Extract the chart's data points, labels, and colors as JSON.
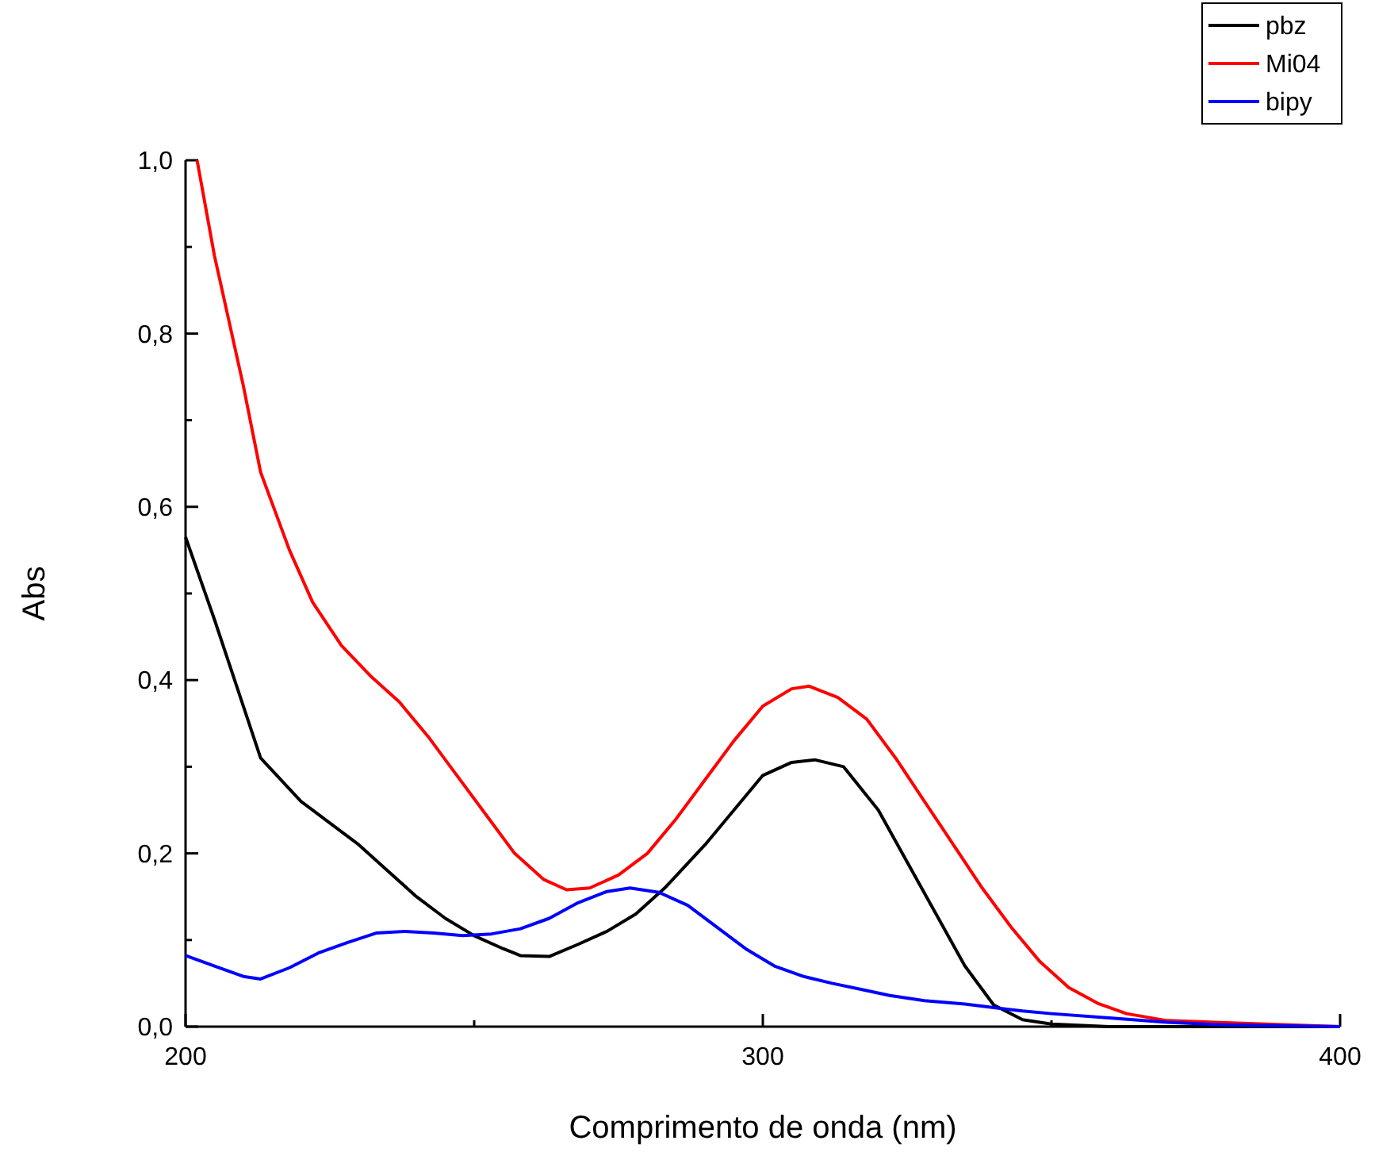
{
  "chart_data": {
    "type": "line",
    "xlabel": "Comprimento de onda (nm)",
    "ylabel": "Abs",
    "xlim": [
      200,
      400
    ],
    "ylim": [
      0,
      1
    ],
    "xticks": [
      200,
      {
        "value": 250,
        "label": null
      },
      300,
      {
        "value": 350,
        "label": null
      },
      400
    ],
    "yticks": [
      {
        "value": 0,
        "label": "0,0"
      },
      {
        "value": 0.1,
        "label": null
      },
      {
        "value": 0.2,
        "label": "0,2"
      },
      {
        "value": 0.3,
        "label": null
      },
      {
        "value": 0.4,
        "label": "0,4"
      },
      {
        "value": 0.5,
        "label": null
      },
      {
        "value": 0.6,
        "label": "0,6"
      },
      {
        "value": 0.7,
        "label": null
      },
      {
        "value": 0.8,
        "label": "0,8"
      },
      {
        "value": 0.9,
        "label": null
      },
      {
        "value": 1,
        "label": "1,0"
      }
    ],
    "grid": false,
    "legend": "top right",
    "marker": "none",
    "line_style": "solid",
    "series": [
      {
        "name": "pbz",
        "color": "#000000",
        "x": [
          200,
          205,
          210,
          213,
          220,
          225,
          230,
          235,
          240,
          245,
          250,
          255,
          258,
          263,
          268,
          273,
          278,
          283,
          290,
          295,
          300,
          305,
          309,
          314,
          320,
          325,
          330,
          335,
          340,
          345,
          350,
          360,
          400
        ],
        "values": [
          0.565,
          0.47,
          0.37,
          0.31,
          0.26,
          0.235,
          0.21,
          0.18,
          0.15,
          0.125,
          0.105,
          0.09,
          0.082,
          0.081,
          0.095,
          0.11,
          0.13,
          0.16,
          0.21,
          0.25,
          0.29,
          0.305,
          0.308,
          0.3,
          0.25,
          0.19,
          0.13,
          0.07,
          0.025,
          0.008,
          0.003,
          0,
          0
        ]
      },
      {
        "name": "Mi04",
        "color": "#ff0000",
        "x": [
          202,
          205,
          210,
          213,
          218,
          222,
          227,
          232,
          237,
          242,
          247,
          252,
          257,
          262,
          266,
          270,
          275,
          280,
          285,
          290,
          295,
          300,
          305,
          308,
          313,
          318,
          323,
          328,
          333,
          338,
          343,
          348,
          353,
          358,
          363,
          370,
          400
        ],
        "values": [
          1,
          0.89,
          0.74,
          0.64,
          0.55,
          0.49,
          0.44,
          0.405,
          0.375,
          0.335,
          0.29,
          0.245,
          0.2,
          0.17,
          0.158,
          0.16,
          0.175,
          0.2,
          0.24,
          0.285,
          0.33,
          0.37,
          0.39,
          0.393,
          0.38,
          0.355,
          0.31,
          0.26,
          0.21,
          0.16,
          0.115,
          0.075,
          0.045,
          0.027,
          0.015,
          0.007,
          0
        ]
      },
      {
        "name": "bipy",
        "color": "#0000ff",
        "x": [
          200,
          205,
          210,
          213,
          218,
          223,
          228,
          233,
          238,
          243,
          248,
          253,
          258,
          263,
          268,
          273,
          277,
          282,
          287,
          292,
          297,
          302,
          307,
          312,
          317,
          322,
          328,
          335,
          340,
          345,
          350,
          360,
          370,
          380,
          400
        ],
        "values": [
          0.082,
          0.07,
          0.058,
          0.055,
          0.068,
          0.085,
          0.097,
          0.108,
          0.11,
          0.108,
          0.105,
          0.107,
          0.113,
          0.125,
          0.143,
          0.156,
          0.16,
          0.155,
          0.14,
          0.115,
          0.09,
          0.07,
          0.058,
          0.05,
          0.043,
          0.036,
          0.03,
          0.026,
          0.022,
          0.018,
          0.015,
          0.01,
          0.005,
          0.002,
          0
        ]
      }
    ]
  }
}
